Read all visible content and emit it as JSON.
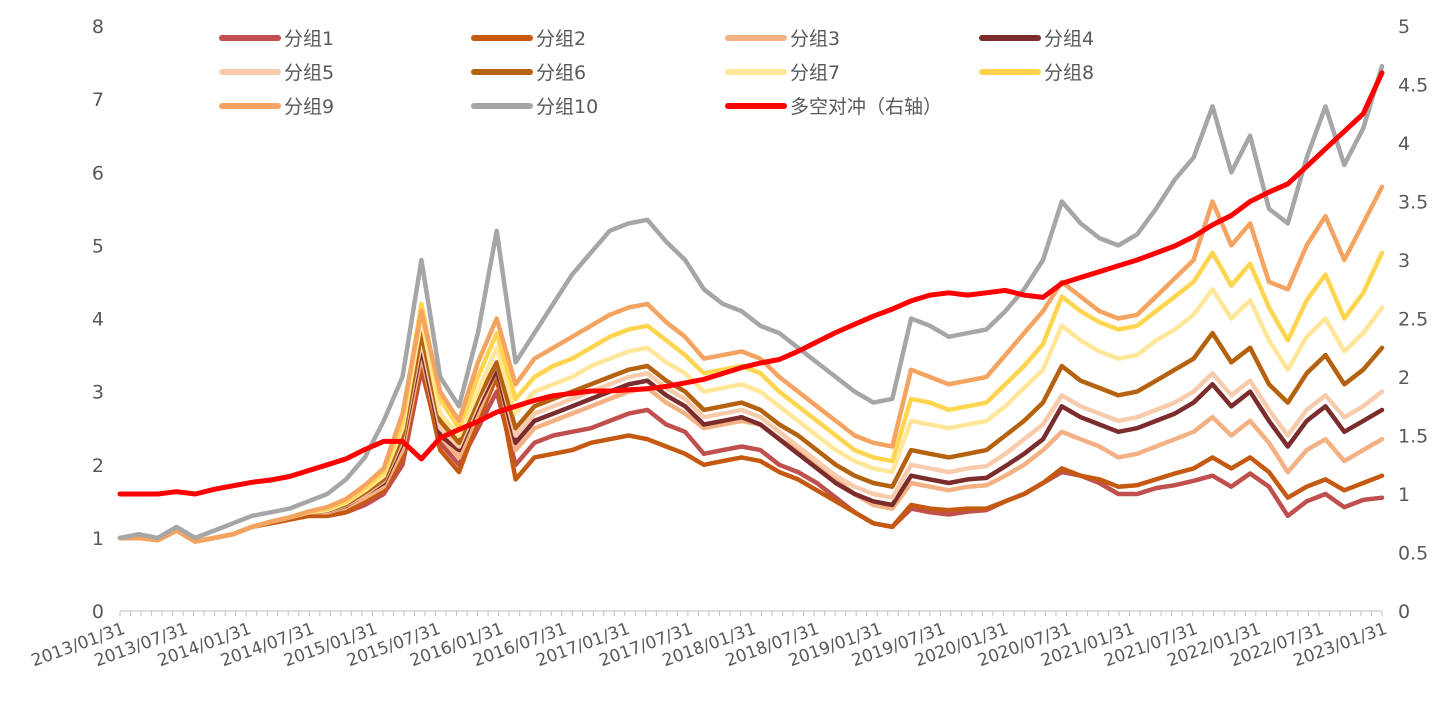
{
  "chart_data": {
    "type": "line",
    "title": "",
    "xlabel": "",
    "ylabel": "",
    "left_axis": {
      "ylim": [
        0,
        8
      ],
      "ticks": [
        "0",
        "1",
        "2",
        "3",
        "4",
        "5",
        "6",
        "7",
        "8"
      ]
    },
    "right_axis": {
      "ylim": [
        0,
        5
      ],
      "ticks": [
        "0",
        "0.5",
        "1",
        "1.5",
        "2",
        "2.5",
        "3",
        "3.5",
        "4",
        "4.5",
        "5"
      ]
    },
    "x_ticks": [
      "2013/01/31",
      "2013/07/31",
      "2014/01/31",
      "2014/07/31",
      "2015/01/31",
      "2015/07/31",
      "2016/01/31",
      "2016/07/31",
      "2017/01/31",
      "2017/07/31",
      "2018/01/31",
      "2018/07/31",
      "2019/01/31",
      "2019/07/31",
      "2020/01/31",
      "2020/07/31",
      "2021/01/31",
      "2021/07/31",
      "2022/01/31",
      "2022/07/31",
      "2023/01/31"
    ],
    "x_frequency": "monthly",
    "x_start": "2013/01/31",
    "x_end": "2023/01/31",
    "grid": false,
    "legend_position": "top",
    "series": [
      {
        "name": "分组1",
        "color": "#C0504D",
        "axis": "left",
        "values": [
          1.0,
          1.0,
          0.97,
          1.1,
          0.95,
          1.0,
          1.05,
          1.15,
          1.2,
          1.25,
          1.3,
          1.3,
          1.35,
          1.45,
          1.6,
          2.0,
          3.3,
          2.3,
          2.0,
          2.5,
          3.0,
          2.0,
          2.3,
          2.4,
          2.45,
          2.5,
          2.6,
          2.7,
          2.75,
          2.55,
          2.45,
          2.15,
          2.2,
          2.25,
          2.2,
          2.0,
          1.9,
          1.75,
          1.55,
          1.35,
          1.2,
          1.15,
          1.4,
          1.35,
          1.32,
          1.36,
          1.38,
          1.5,
          1.6,
          1.75,
          1.9,
          1.85,
          1.75,
          1.6,
          1.6,
          1.68,
          1.72,
          1.78,
          1.85,
          1.7,
          1.88,
          1.7,
          1.3,
          1.5,
          1.6,
          1.42,
          1.52,
          1.55
        ]
      },
      {
        "name": "分组2",
        "color": "#C65911",
        "axis": "left",
        "values": [
          1.0,
          1.0,
          0.97,
          1.1,
          0.95,
          1.0,
          1.05,
          1.15,
          1.2,
          1.25,
          1.3,
          1.3,
          1.35,
          1.5,
          1.65,
          2.1,
          3.4,
          2.2,
          1.9,
          2.6,
          3.2,
          1.8,
          2.1,
          2.15,
          2.2,
          2.3,
          2.35,
          2.4,
          2.35,
          2.25,
          2.15,
          2.0,
          2.05,
          2.1,
          2.05,
          1.9,
          1.8,
          1.65,
          1.5,
          1.35,
          1.2,
          1.15,
          1.45,
          1.4,
          1.38,
          1.4,
          1.4,
          1.5,
          1.6,
          1.75,
          1.95,
          1.85,
          1.8,
          1.7,
          1.72,
          1.8,
          1.88,
          1.95,
          2.1,
          1.95,
          2.1,
          1.9,
          1.55,
          1.7,
          1.8,
          1.65,
          1.75,
          1.85
        ]
      },
      {
        "name": "分组3",
        "color": "#F4B183",
        "axis": "left",
        "values": [
          1.0,
          1.0,
          0.97,
          1.1,
          0.95,
          1.0,
          1.05,
          1.15,
          1.22,
          1.28,
          1.35,
          1.35,
          1.42,
          1.55,
          1.7,
          2.2,
          3.5,
          2.4,
          2.1,
          2.7,
          3.3,
          2.2,
          2.5,
          2.6,
          2.7,
          2.8,
          2.9,
          3.0,
          3.05,
          2.85,
          2.7,
          2.5,
          2.55,
          2.6,
          2.55,
          2.35,
          2.2,
          2.0,
          1.8,
          1.6,
          1.45,
          1.4,
          1.75,
          1.7,
          1.65,
          1.7,
          1.72,
          1.85,
          2.0,
          2.2,
          2.45,
          2.35,
          2.25,
          2.1,
          2.15,
          2.25,
          2.35,
          2.45,
          2.65,
          2.4,
          2.6,
          2.3,
          1.9,
          2.2,
          2.35,
          2.05,
          2.2,
          2.35
        ]
      },
      {
        "name": "分组4",
        "color": "#7B2C2C",
        "axis": "left",
        "values": [
          1.0,
          1.0,
          0.97,
          1.1,
          0.95,
          1.0,
          1.05,
          1.15,
          1.22,
          1.28,
          1.35,
          1.36,
          1.44,
          1.6,
          1.75,
          2.3,
          3.6,
          2.4,
          2.2,
          2.8,
          3.3,
          2.3,
          2.6,
          2.7,
          2.8,
          2.9,
          3.0,
          3.1,
          3.15,
          2.95,
          2.8,
          2.55,
          2.6,
          2.65,
          2.55,
          2.35,
          2.15,
          1.95,
          1.75,
          1.6,
          1.5,
          1.45,
          1.85,
          1.8,
          1.75,
          1.8,
          1.82,
          1.98,
          2.15,
          2.35,
          2.8,
          2.65,
          2.55,
          2.45,
          2.5,
          2.6,
          2.7,
          2.85,
          3.1,
          2.8,
          3.0,
          2.6,
          2.25,
          2.6,
          2.8,
          2.45,
          2.6,
          2.75
        ]
      },
      {
        "name": "分组5",
        "color": "#F8CBAD",
        "axis": "left",
        "values": [
          1.0,
          1.0,
          0.97,
          1.1,
          0.95,
          1.0,
          1.05,
          1.15,
          1.22,
          1.28,
          1.35,
          1.36,
          1.45,
          1.6,
          1.78,
          2.35,
          3.7,
          2.5,
          2.25,
          2.85,
          3.4,
          2.4,
          2.7,
          2.8,
          2.9,
          3.0,
          3.1,
          3.2,
          3.25,
          3.05,
          2.9,
          2.65,
          2.7,
          2.75,
          2.65,
          2.45,
          2.25,
          2.05,
          1.85,
          1.7,
          1.6,
          1.55,
          2.0,
          1.95,
          1.9,
          1.95,
          1.98,
          2.15,
          2.35,
          2.55,
          2.95,
          2.8,
          2.7,
          2.6,
          2.65,
          2.75,
          2.85,
          3.0,
          3.25,
          2.95,
          3.15,
          2.75,
          2.4,
          2.75,
          2.95,
          2.65,
          2.8,
          3.0
        ]
      },
      {
        "name": "分组6",
        "color": "#B5620F",
        "axis": "left",
        "values": [
          1.0,
          1.0,
          0.97,
          1.1,
          0.95,
          1.0,
          1.05,
          1.15,
          1.22,
          1.28,
          1.35,
          1.37,
          1.46,
          1.62,
          1.8,
          2.4,
          3.8,
          2.6,
          2.3,
          2.9,
          3.4,
          2.5,
          2.8,
          2.9,
          3.0,
          3.1,
          3.2,
          3.3,
          3.35,
          3.15,
          3.0,
          2.75,
          2.8,
          2.85,
          2.75,
          2.55,
          2.4,
          2.2,
          2.0,
          1.85,
          1.75,
          1.7,
          2.2,
          2.15,
          2.1,
          2.15,
          2.2,
          2.4,
          2.6,
          2.85,
          3.35,
          3.15,
          3.05,
          2.95,
          3.0,
          3.15,
          3.3,
          3.45,
          3.8,
          3.4,
          3.6,
          3.1,
          2.85,
          3.25,
          3.5,
          3.1,
          3.3,
          3.6
        ]
      },
      {
        "name": "分组7",
        "color": "#FFE699",
        "axis": "left",
        "values": [
          1.0,
          1.0,
          0.97,
          1.1,
          0.95,
          1.0,
          1.05,
          1.15,
          1.22,
          1.28,
          1.35,
          1.38,
          1.48,
          1.65,
          1.85,
          2.5,
          4.0,
          2.7,
          2.4,
          3.0,
          3.6,
          2.7,
          3.0,
          3.1,
          3.2,
          3.35,
          3.45,
          3.55,
          3.6,
          3.4,
          3.25,
          3.0,
          3.05,
          3.1,
          3.0,
          2.8,
          2.6,
          2.4,
          2.2,
          2.05,
          1.95,
          1.9,
          2.6,
          2.55,
          2.5,
          2.55,
          2.6,
          2.8,
          3.05,
          3.3,
          3.9,
          3.7,
          3.55,
          3.45,
          3.5,
          3.7,
          3.85,
          4.05,
          4.4,
          4.0,
          4.25,
          3.7,
          3.3,
          3.75,
          4.0,
          3.55,
          3.8,
          4.15
        ]
      },
      {
        "name": "分组8",
        "color": "#FFD54F",
        "axis": "left",
        "values": [
          1.0,
          1.0,
          0.97,
          1.1,
          0.95,
          1.0,
          1.05,
          1.15,
          1.22,
          1.28,
          1.36,
          1.4,
          1.5,
          1.68,
          1.9,
          2.6,
          4.2,
          2.9,
          2.5,
          3.2,
          3.8,
          2.9,
          3.2,
          3.35,
          3.45,
          3.6,
          3.75,
          3.85,
          3.9,
          3.7,
          3.5,
          3.25,
          3.3,
          3.35,
          3.25,
          3.0,
          2.8,
          2.6,
          2.4,
          2.2,
          2.1,
          2.05,
          2.9,
          2.85,
          2.75,
          2.8,
          2.85,
          3.1,
          3.35,
          3.65,
          4.3,
          4.1,
          3.95,
          3.85,
          3.9,
          4.1,
          4.3,
          4.5,
          4.9,
          4.45,
          4.75,
          4.15,
          3.7,
          4.25,
          4.6,
          4.0,
          4.35,
          4.9
        ]
      },
      {
        "name": "分组9",
        "color": "#F4A460",
        "axis": "left",
        "values": [
          1.0,
          1.0,
          0.97,
          1.1,
          0.95,
          1.0,
          1.05,
          1.15,
          1.22,
          1.28,
          1.36,
          1.42,
          1.53,
          1.72,
          1.95,
          2.7,
          4.1,
          3.0,
          2.6,
          3.4,
          4.0,
          3.1,
          3.45,
          3.6,
          3.75,
          3.9,
          4.05,
          4.15,
          4.2,
          3.95,
          3.75,
          3.45,
          3.5,
          3.55,
          3.45,
          3.2,
          3.0,
          2.8,
          2.6,
          2.4,
          2.3,
          2.25,
          3.3,
          3.2,
          3.1,
          3.15,
          3.2,
          3.5,
          3.8,
          4.1,
          4.5,
          4.3,
          4.1,
          4.0,
          4.05,
          4.3,
          4.55,
          4.8,
          5.6,
          5.0,
          5.3,
          4.5,
          4.4,
          5.0,
          5.4,
          4.8,
          5.3,
          5.8
        ]
      },
      {
        "name": "分组10",
        "color": "#A6A6A6",
        "axis": "left",
        "values": [
          1.0,
          1.05,
          1.0,
          1.15,
          1.0,
          1.1,
          1.2,
          1.3,
          1.35,
          1.4,
          1.5,
          1.6,
          1.8,
          2.1,
          2.6,
          3.2,
          4.8,
          3.2,
          2.8,
          3.8,
          5.2,
          3.4,
          3.8,
          4.2,
          4.6,
          4.9,
          5.2,
          5.3,
          5.35,
          5.05,
          4.8,
          4.4,
          4.2,
          4.1,
          3.9,
          3.8,
          3.6,
          3.4,
          3.2,
          3.0,
          2.85,
          2.9,
          4.0,
          3.9,
          3.75,
          3.8,
          3.85,
          4.1,
          4.4,
          4.8,
          5.6,
          5.3,
          5.1,
          5.0,
          5.15,
          5.5,
          5.9,
          6.2,
          6.9,
          6.0,
          6.5,
          5.5,
          5.3,
          6.2,
          6.9,
          6.1,
          6.6,
          7.45
        ]
      },
      {
        "name": "多空对冲（右轴）",
        "color": "#FF0000",
        "axis": "right",
        "values": [
          1.0,
          1.0,
          1.0,
          1.02,
          1.0,
          1.04,
          1.07,
          1.1,
          1.12,
          1.15,
          1.2,
          1.25,
          1.3,
          1.38,
          1.45,
          1.45,
          1.3,
          1.48,
          1.55,
          1.62,
          1.7,
          1.75,
          1.8,
          1.84,
          1.86,
          1.88,
          1.88,
          1.89,
          1.9,
          1.92,
          1.95,
          1.98,
          2.03,
          2.08,
          2.12,
          2.15,
          2.22,
          2.3,
          2.38,
          2.45,
          2.52,
          2.58,
          2.65,
          2.7,
          2.72,
          2.7,
          2.72,
          2.74,
          2.7,
          2.68,
          2.8,
          2.85,
          2.9,
          2.95,
          3.0,
          3.06,
          3.12,
          3.2,
          3.3,
          3.38,
          3.5,
          3.58,
          3.65,
          3.8,
          3.95,
          4.1,
          4.25,
          4.6
        ]
      }
    ]
  }
}
